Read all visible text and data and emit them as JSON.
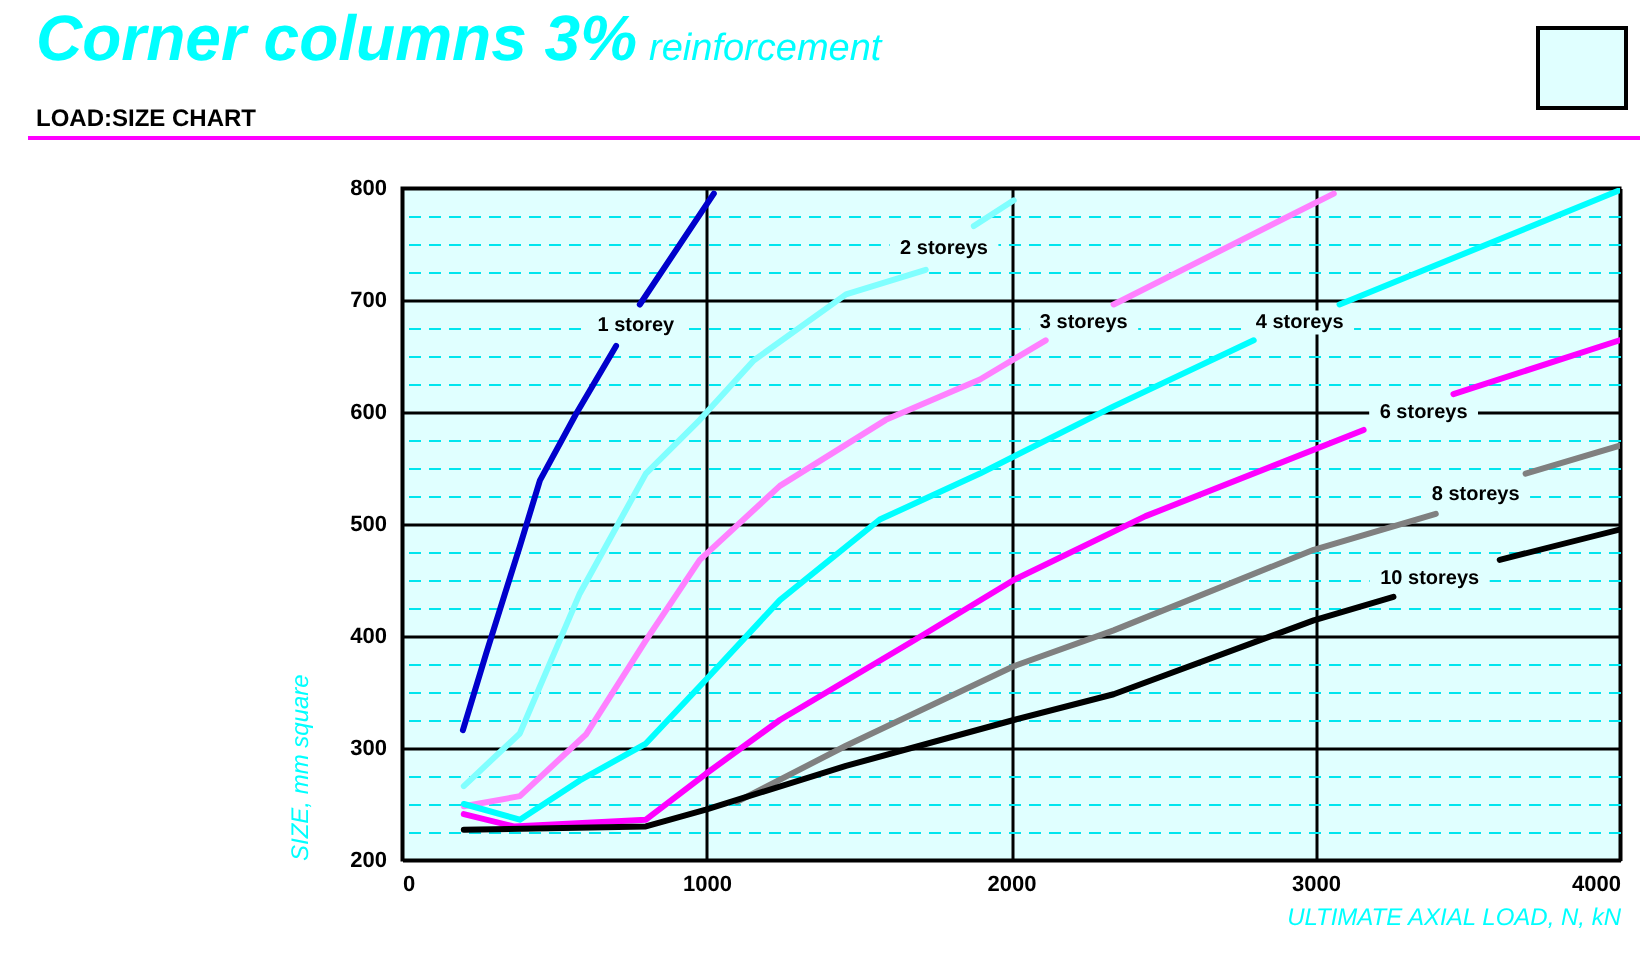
{
  "chart_data": {
    "type": "line",
    "title": "Corner columns 3%",
    "subtitle": "reinforcement",
    "annotations": [
      "LOAD:SIZE CHART"
    ],
    "xlabel": "ULTIMATE AXIAL LOAD, N, kN",
    "ylabel": "SIZE, mm square",
    "xlim": [
      0,
      4000
    ],
    "xticks": [
      0,
      1000,
      2000,
      3000,
      4000
    ],
    "ylim": [
      200,
      800
    ],
    "yticks": [
      200,
      {
        "value": 225,
        "label": null
      },
      {
        "value": 250,
        "label": null
      },
      {
        "value": 275,
        "label": null
      },
      300,
      {
        "value": 325,
        "label": null
      },
      {
        "value": 350,
        "label": null
      },
      {
        "value": 375,
        "label": null
      },
      400,
      {
        "value": 425,
        "label": null
      },
      {
        "value": 450,
        "label": null
      },
      {
        "value": 475,
        "label": null
      },
      500,
      {
        "value": 525,
        "label": null
      },
      {
        "value": 550,
        "label": null
      },
      {
        "value": 575,
        "label": null
      },
      600,
      {
        "value": 625,
        "label": null
      },
      {
        "value": 650,
        "label": null
      },
      {
        "value": 675,
        "label": null
      },
      700,
      {
        "value": 725,
        "label": null
      },
      {
        "value": 750,
        "label": null
      },
      {
        "value": 775,
        "label": null
      },
      800
    ],
    "grid": true,
    "marker": "none",
    "line_style": "solid",
    "series": [
      {
        "name": "1 storey",
        "color": "#0000cc",
        "x": [
          200,
          276,
          388,
          453,
          571,
          703,
          768,
          781,
          1024
        ],
        "values": [
          316,
          384,
          481,
          539,
          598,
          659,
          null,
          696,
          795
        ]
      },
      {
        "name": "2 storeys",
        "color": "#80ffff",
        "x": [
          203,
          387,
          584,
          801,
          978,
          1155,
          1458,
          1720,
          1780,
          1878,
          2009
        ],
        "values": [
          266,
          313,
          438,
          545,
          593,
          646,
          705,
          727,
          null,
          766,
          789
        ]
      },
      {
        "name": "3 storeys",
        "color": "#ff80ff",
        "x": [
          203,
          387,
          604,
          801,
          978,
          1241,
          1589,
          1898,
          2114,
          2239,
          2337,
          3060
        ],
        "values": [
          248,
          257,
          312,
          396,
          468,
          534,
          593,
          629,
          664,
          null,
          696,
          795
        ]
      },
      {
        "name": "4 storeys",
        "color": "#00ffff",
        "x": [
          203,
          387,
          584,
          801,
          998,
          1241,
          1569,
          1898,
          2337,
          2797,
          2948,
          3079,
          3999
        ],
        "values": [
          250,
          236,
          271,
          304,
          361,
          432,
          504,
          545,
          605,
          664,
          null,
          696,
          798
        ]
      },
      {
        "name": "6 storeys",
        "color": "#ff00ff",
        "x": [
          203,
          367,
          801,
          998,
          1241,
          1681,
          2009,
          2442,
          3158,
          3355,
          3453,
          3999
        ],
        "values": [
          241,
          230,
          236,
          277,
          325,
          396,
          450,
          507,
          584,
          null,
          616,
          664
        ]
      },
      {
        "name": "8 storeys",
        "color": "#808080",
        "x": [
          1100,
          1458,
          2009,
          2337,
          2994,
          3395,
          3526,
          3690,
          3999
        ],
        "values": [
          252,
          302,
          373,
          405,
          477,
          509,
          null,
          545,
          570
        ]
      },
      {
        "name": "10 storeys",
        "color": "#000000",
        "x": [
          203,
          801,
          998,
          1458,
          2009,
          2337,
          2994,
          3256,
          3375,
          3605,
          3999
        ],
        "values": [
          227,
          230,
          245,
          284,
          325,
          348,
          414,
          435,
          null,
          468,
          495
        ]
      }
    ]
  }
}
